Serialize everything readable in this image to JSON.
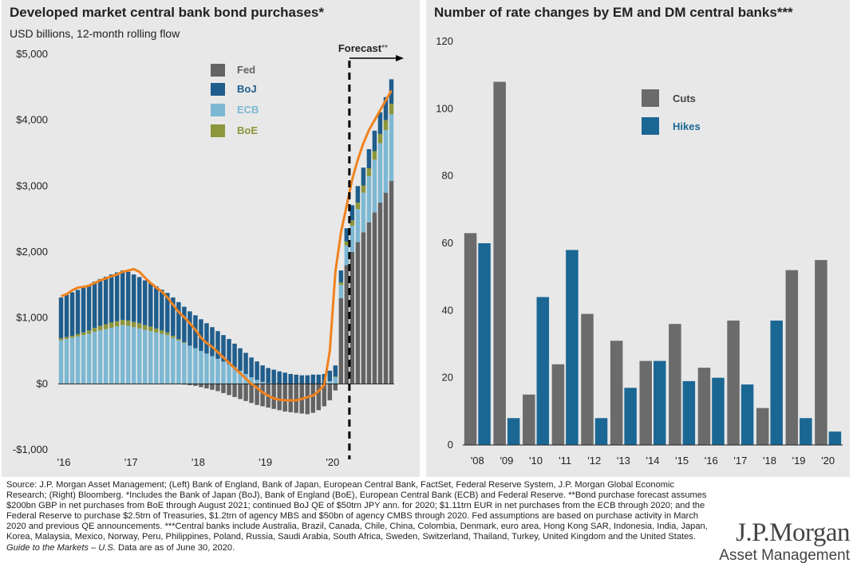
{
  "left": {
    "title": "Developed market central bank bond purchases*",
    "subtitle": "USD billions, 12-month rolling flow",
    "forecast_label": "Forecast",
    "forecast_mark": "**"
  },
  "right": {
    "title": "Number of rate changes by EM and DM central banks***"
  },
  "colors": {
    "fed": "#636363",
    "boj": "#1f5d8c",
    "ecb": "#7db8d3",
    "boe": "#8c963b",
    "total": "#f0821e",
    "cuts": "#6b6b6b",
    "hikes": "#1b6794"
  },
  "chart_data": [
    {
      "type": "bar",
      "stacked": true,
      "title": "Developed market central bank bond purchases*",
      "subtitle": "USD billions, 12-month rolling flow",
      "ylim": [
        -1000,
        5000
      ],
      "yticks": [
        -1000,
        0,
        1000,
        2000,
        3000,
        4000,
        5000
      ],
      "ytick_labels": [
        "-$1,000",
        "$0",
        "$1,000",
        "$2,000",
        "$3,000",
        "$4,000",
        "$5,000"
      ],
      "xtick_labels": [
        "'16",
        "'17",
        "'18",
        "'19",
        "'20"
      ],
      "x_start": "2016-01",
      "x_end": "2020-12",
      "forecast_start": "2020-05",
      "legend_position": "top-right",
      "series": [
        {
          "name": "Fed",
          "values": [
            0,
            0,
            0,
            0,
            0,
            0,
            0,
            0,
            0,
            0,
            0,
            0,
            0,
            0,
            0,
            0,
            0,
            0,
            0,
            0,
            0,
            0,
            -10,
            -20,
            -30,
            -50,
            -70,
            -90,
            -110,
            -140,
            -170,
            -200,
            -230,
            -260,
            -290,
            -320,
            -340,
            -360,
            -380,
            -400,
            -420,
            -430,
            -440,
            -450,
            -460,
            -440,
            -400,
            -340,
            -250,
            -100,
            1300,
            1800,
            2000,
            2150,
            2300,
            2450,
            2600,
            2750,
            2900,
            3080
          ]
        },
        {
          "name": "BoJ",
          "values": [
            620,
            640,
            660,
            670,
            680,
            690,
            700,
            710,
            720,
            730,
            740,
            750,
            740,
            720,
            700,
            680,
            660,
            640,
            620,
            600,
            580,
            560,
            540,
            520,
            500,
            480,
            460,
            440,
            420,
            400,
            380,
            360,
            340,
            320,
            300,
            280,
            250,
            230,
            210,
            190,
            170,
            150,
            140,
            130,
            130,
            140,
            140,
            150,
            160,
            170,
            180,
            200,
            230,
            250,
            270,
            290,
            310,
            330,
            350,
            370
          ]
        },
        {
          "name": "ECB",
          "values": [
            660,
            680,
            700,
            720,
            740,
            760,
            790,
            810,
            830,
            850,
            870,
            890,
            880,
            860,
            840,
            820,
            800,
            780,
            760,
            740,
            700,
            660,
            620,
            580,
            540,
            500,
            460,
            420,
            380,
            340,
            300,
            250,
            200,
            150,
            100,
            60,
            30,
            10,
            5,
            0,
            0,
            0,
            0,
            0,
            0,
            0,
            0,
            0,
            40,
            100,
            200,
            300,
            400,
            500,
            600,
            700,
            800,
            900,
            950,
            1010
          ]
        },
        {
          "name": "BoE",
          "values": [
            30,
            30,
            30,
            35,
            40,
            50,
            60,
            70,
            75,
            80,
            80,
            80,
            80,
            80,
            80,
            70,
            70,
            60,
            50,
            40,
            30,
            20,
            10,
            0,
            0,
            0,
            0,
            0,
            0,
            0,
            0,
            0,
            0,
            0,
            0,
            0,
            0,
            0,
            0,
            0,
            0,
            0,
            0,
            0,
            0,
            0,
            0,
            0,
            0,
            10,
            40,
            60,
            80,
            100,
            110,
            120,
            130,
            140,
            150,
            160
          ]
        }
      ],
      "total": {
        "name": "Total",
        "values": [
          1330,
          1360,
          1420,
          1460,
          1470,
          1490,
          1530,
          1570,
          1600,
          1630,
          1660,
          1700,
          1720,
          1740,
          1700,
          1610,
          1530,
          1460,
          1400,
          1310,
          1200,
          1090,
          1010,
          920,
          820,
          700,
          620,
          560,
          480,
          400,
          320,
          240,
          160,
          80,
          0,
          -60,
          -130,
          -180,
          -220,
          -240,
          -250,
          -250,
          -250,
          -230,
          -200,
          -180,
          -110,
          -20,
          500,
          1700,
          2300,
          2700,
          3100,
          3400,
          3650,
          3850,
          4000,
          4150,
          4300,
          4450
        ]
      }
    },
    {
      "type": "bar",
      "title": "Number of rate changes by EM and DM central banks***",
      "categories": [
        "'08",
        "'09",
        "'10",
        "'11",
        "'12",
        "'13",
        "'14",
        "'15",
        "'16",
        "'17",
        "'18",
        "'19",
        "'20"
      ],
      "ylim": [
        0,
        120
      ],
      "yticks": [
        0,
        20,
        40,
        60,
        80,
        100,
        120
      ],
      "legend_position": "top-left",
      "series": [
        {
          "name": "Cuts",
          "values": [
            63,
            108,
            15,
            24,
            39,
            31,
            25,
            36,
            23,
            37,
            11,
            52,
            55
          ]
        },
        {
          "name": "Hikes",
          "values": [
            60,
            8,
            44,
            58,
            8,
            17,
            25,
            19,
            20,
            18,
            37,
            8,
            4
          ]
        }
      ]
    }
  ],
  "footer": {
    "text": "Source: J.P. Morgan Asset Management; (Left) Bank of England, Bank of Japan, European Central Bank, FactSet, Federal Reserve System, J.P. Morgan Global Economic Research; (Right) Bloomberg. *Includes the Bank of Japan (BoJ), Bank of England (BoE), European Central Bank (ECB) and Federal Reserve. **Bond purchase forecast assumes $200bn GBP in net purchases from BoE through August 2021; continued BoJ QE of $50trn JPY ann. for 2020; $1.11trn EUR in net purchases from the ECB through 2020; and the Federal Reserve to purchase $2.5trn of Treasuries, $1.2trn of agency MBS and $50bn of agency CMBS through 2020. Fed assumptions are based on purchase activity in March 2020 and previous QE announcements. ***Central banks include Australia, Brazil, Canada, Chile, China, Colombia, Denmark, euro area, Hong Kong SAR, Indonesia, India, Japan, Korea, Malaysia, Mexico, Norway, Peru, Philippines, Poland, Russia, Saudi Arabia, South Africa, Sweden, Switzerland, Thailand, Turkey, United Kingdom and the United States.",
    "guide": "Guide to the Markets – U.S.",
    "asof": "Data are as of June 30, 2020."
  },
  "logo": {
    "line1": "J.P.Morgan",
    "line2": "Asset Management"
  }
}
